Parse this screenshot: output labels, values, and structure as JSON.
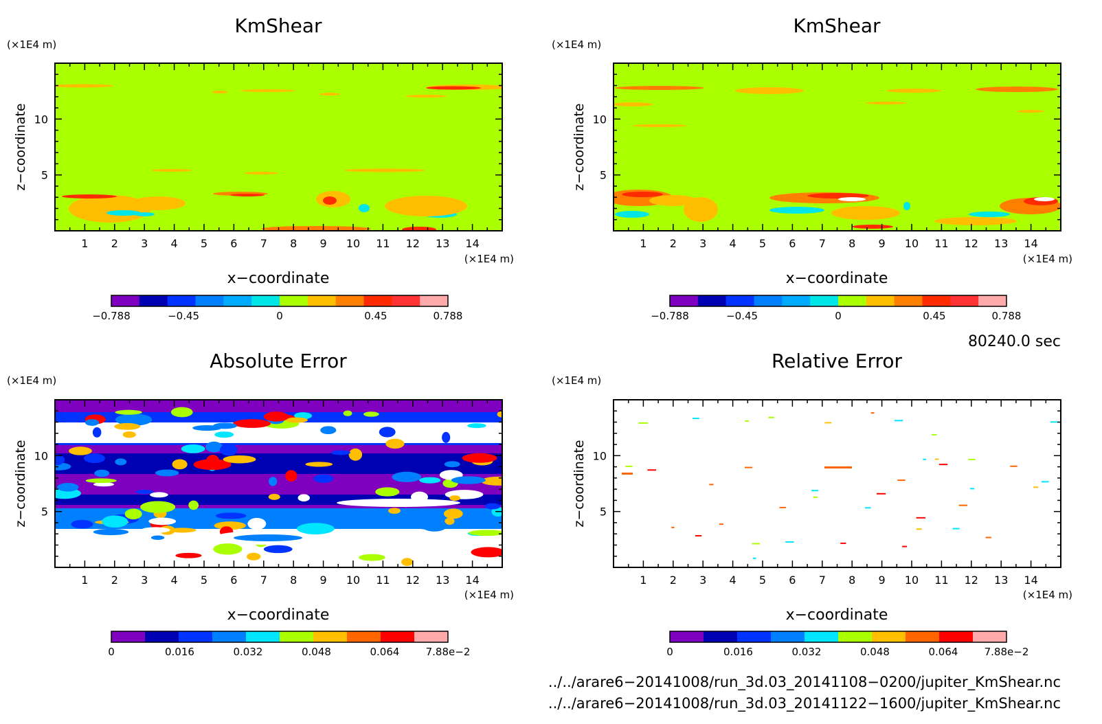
{
  "panels": [
    {
      "title": "KmShear",
      "unit_label": "(×1E4 m)",
      "xlabel": "x−coordinate",
      "ylabel": "z−coordinate",
      "x_unit": "(×1E4 m)"
    },
    {
      "title": "KmShear",
      "unit_label": "(×1E4 m)",
      "xlabel": "x−coordinate",
      "ylabel": "z−coordinate",
      "x_unit": "(×1E4 m)"
    },
    {
      "title": "Absolute Error",
      "unit_label": "(×1E4 m)",
      "xlabel": "x−coordinate",
      "ylabel": "z−coordinate",
      "x_unit": "(×1E4 m)"
    },
    {
      "title": "Relative Error",
      "unit_label": "(×1E4 m)",
      "xlabel": "x−coordinate",
      "ylabel": "z−coordinate",
      "x_unit": "(×1E4 m)"
    }
  ],
  "time_label": "80240.0 sec",
  "file_paths": [
    "../../arare6−20141008/run_3d.03_20141108−0200/jupiter_KmShear.nc",
    "../../arare6−20141008/run_3d.03_20141122−1600/jupiter_KmShear.nc"
  ],
  "colors": {
    "kmshear_scale": [
      "#7f00bf",
      "#0000b3",
      "#0033ff",
      "#0080ff",
      "#00aaff",
      "#00e6e6",
      "#aaff00",
      "#ffbf00",
      "#ff8000",
      "#ff2b00",
      "#ff3333",
      "#ffaaaa"
    ],
    "error_scale": [
      "#7f00bf",
      "#0000b3",
      "#0033ff",
      "#0080ff",
      "#00e6ff",
      "#aaff00",
      "#ffbf00",
      "#ff6600",
      "#ff0000",
      "#ffaaaa"
    ],
    "background": "#aaff00"
  },
  "chart_data": [
    {
      "type": "heatmap",
      "title": "KmShear",
      "xlabel": "x−coordinate",
      "ylabel": "z−coordinate",
      "xlim": [
        0,
        15
      ],
      "ylim": [
        0,
        15
      ],
      "x_ticks": [
        1,
        2,
        3,
        4,
        5,
        6,
        7,
        8,
        9,
        10,
        11,
        12,
        13,
        14
      ],
      "y_ticks": [
        5,
        10
      ],
      "colorbar": {
        "min": -0.788,
        "max": 0.788,
        "tick_labels": [
          "−0.788",
          "−0.45",
          "0",
          "0.45",
          "0.788"
        ],
        "tick_values": [
          -0.788,
          -0.45,
          0,
          0.45,
          0.788
        ]
      }
    },
    {
      "type": "heatmap",
      "title": "KmShear",
      "xlabel": "x−coordinate",
      "ylabel": "z−coordinate",
      "xlim": [
        0,
        15
      ],
      "ylim": [
        0,
        15
      ],
      "x_ticks": [
        1,
        2,
        3,
        4,
        5,
        6,
        7,
        8,
        9,
        10,
        11,
        12,
        13,
        14
      ],
      "y_ticks": [
        5,
        10
      ],
      "colorbar": {
        "min": -0.788,
        "max": 0.788,
        "tick_labels": [
          "−0.788",
          "−0.45",
          "0",
          "0.45",
          "0.788"
        ],
        "tick_values": [
          -0.788,
          -0.45,
          0,
          0.45,
          0.788
        ]
      }
    },
    {
      "type": "heatmap",
      "title": "Absolute Error",
      "xlabel": "x−coordinate",
      "ylabel": "z−coordinate",
      "xlim": [
        0,
        15
      ],
      "ylim": [
        0,
        15
      ],
      "x_ticks": [
        1,
        2,
        3,
        4,
        5,
        6,
        7,
        8,
        9,
        10,
        11,
        12,
        13,
        14
      ],
      "y_ticks": [
        5,
        10
      ],
      "colorbar": {
        "min": 0,
        "max": 0.0788,
        "tick_labels": [
          "0",
          "0.016",
          "0.032",
          "0.048",
          "0.064",
          "7.88e−2"
        ],
        "tick_values": [
          0,
          0.016,
          0.032,
          0.048,
          0.064,
          0.0788
        ]
      }
    },
    {
      "type": "heatmap",
      "title": "Relative Error",
      "xlabel": "x−coordinate",
      "ylabel": "z−coordinate",
      "xlim": [
        0,
        15
      ],
      "ylim": [
        0,
        15
      ],
      "x_ticks": [
        1,
        2,
        3,
        4,
        5,
        6,
        7,
        8,
        9,
        10,
        11,
        12,
        13,
        14
      ],
      "y_ticks": [
        5,
        10
      ],
      "colorbar": {
        "min": 0,
        "max": 0.0788,
        "tick_labels": [
          "0",
          "0.016",
          "0.032",
          "0.048",
          "0.064",
          "7.88e−2"
        ],
        "tick_values": [
          0,
          0.016,
          0.032,
          0.048,
          0.064,
          0.0788
        ]
      }
    }
  ]
}
